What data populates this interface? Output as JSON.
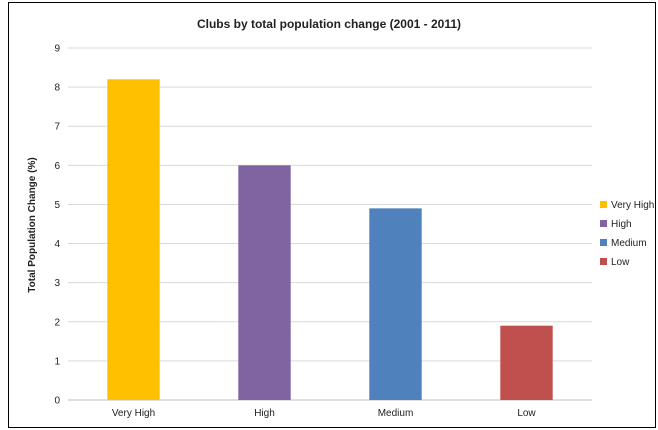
{
  "chart_data": {
    "type": "bar",
    "title": "Clubs by total population change (2001 - 2011)",
    "xlabel": "",
    "ylabel": "Total Population Change (%)",
    "categories": [
      "Very High",
      "High",
      "Medium",
      "Low"
    ],
    "values": [
      8.2,
      6.0,
      4.9,
      1.9
    ],
    "colors": [
      "#FFC000",
      "#8064A2",
      "#4F81BD",
      "#C0504D"
    ],
    "ylim": [
      0,
      9
    ],
    "yticks": [
      0,
      1,
      2,
      3,
      4,
      5,
      6,
      7,
      8,
      9
    ],
    "grid": true,
    "legend": {
      "position": "right",
      "entries": [
        "Very High",
        "High",
        "Medium",
        "Low"
      ]
    }
  }
}
